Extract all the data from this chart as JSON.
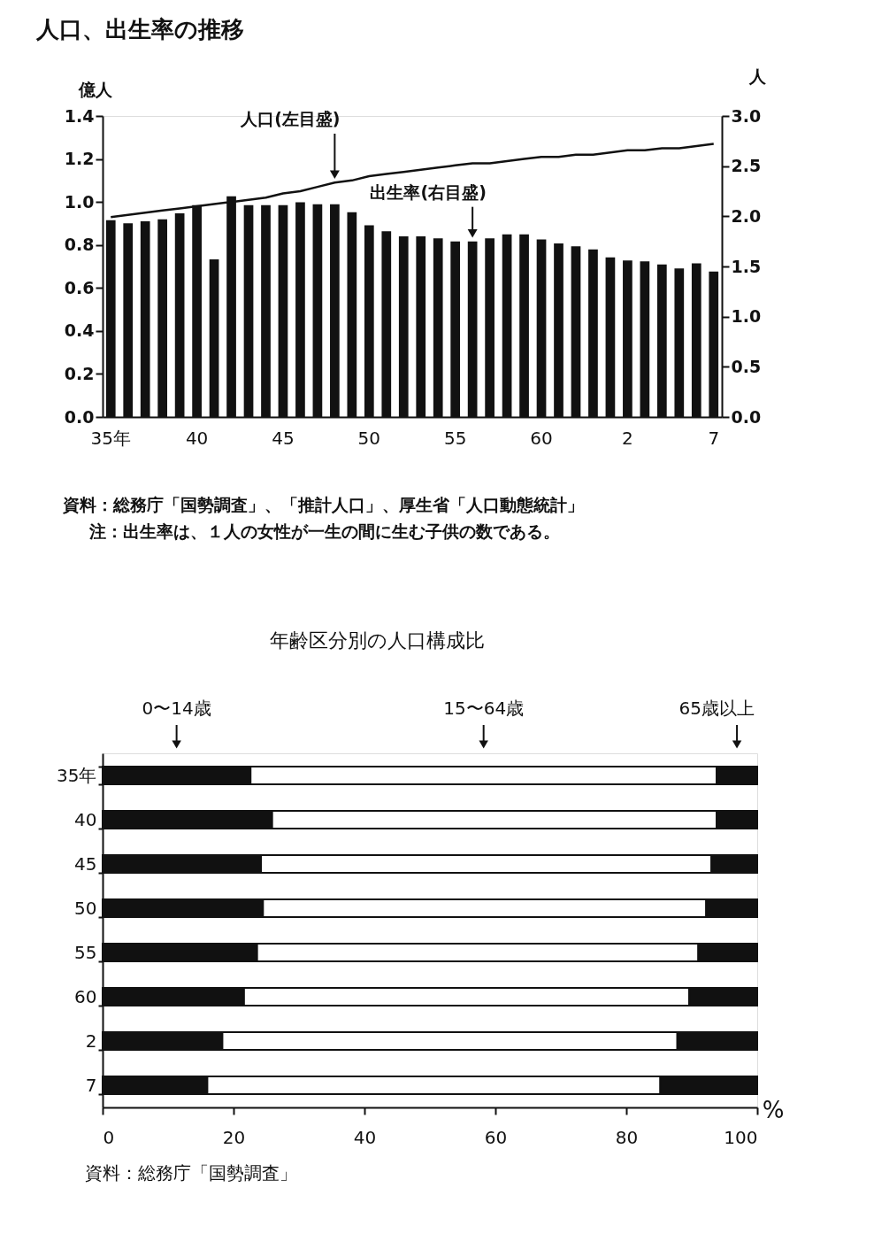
{
  "chart_data": [
    {
      "type": "bar",
      "title": "人口、出生率の推移",
      "ylabel": "億人",
      "y2label": "人",
      "categories": [
        "35年",
        null,
        null,
        null,
        null,
        "40",
        null,
        null,
        null,
        null,
        "45",
        null,
        null,
        null,
        null,
        "50",
        null,
        null,
        null,
        null,
        "55",
        null,
        null,
        null,
        null,
        "60",
        null,
        null,
        null,
        null,
        "2",
        null,
        null,
        null,
        null,
        "7"
      ],
      "series": [
        {
          "name": "人口(左目盛)",
          "type": "line",
          "color": "#111111",
          "values": [
            0.93,
            0.94,
            0.95,
            0.96,
            0.97,
            0.98,
            0.99,
            1.0,
            1.01,
            1.02,
            1.04,
            1.05,
            1.07,
            1.09,
            1.1,
            1.12,
            1.13,
            1.14,
            1.15,
            1.16,
            1.17,
            1.18,
            1.18,
            1.19,
            1.2,
            1.21,
            1.21,
            1.22,
            1.22,
            1.23,
            1.24,
            1.24,
            1.25,
            1.25,
            1.26,
            1.27
          ]
        },
        {
          "name": "出生率(右目盛)",
          "type": "bar",
          "axis": "y2",
          "color": "#111111",
          "values": [
            1.96,
            1.93,
            1.95,
            1.97,
            2.03,
            2.11,
            1.57,
            2.2,
            2.11,
            2.11,
            2.11,
            2.14,
            2.12,
            2.12,
            2.04,
            1.91,
            1.85,
            1.8,
            1.8,
            1.78,
            1.75,
            1.75,
            1.78,
            1.82,
            1.82,
            1.77,
            1.73,
            1.7,
            1.67,
            1.59,
            1.56,
            1.55,
            1.52,
            1.48,
            1.53,
            1.45
          ]
        }
      ],
      "ylim": [
        0,
        1.4
      ],
      "yticks": [
        {
          "value": 0,
          "label": "0.0"
        },
        {
          "value": 0.2,
          "label": "0.2"
        },
        {
          "value": 0.4,
          "label": "0.4"
        },
        {
          "value": 0.6,
          "label": "0.6"
        },
        {
          "value": 0.8,
          "label": "0.8"
        },
        {
          "value": 1,
          "label": "1.0"
        },
        {
          "value": 1.2,
          "label": "1.2"
        },
        {
          "value": 1.4,
          "label": "1.4"
        }
      ],
      "y2lim": [
        0,
        3.0
      ],
      "y2ticks": [
        {
          "value": 0,
          "label": "0.0"
        },
        {
          "value": 0.5,
          "label": "0.5"
        },
        {
          "value": 1,
          "label": "1.0"
        },
        {
          "value": 1.5,
          "label": "1.5"
        },
        {
          "value": 2,
          "label": "2.0"
        },
        {
          "value": 2.5,
          "label": "2.5"
        },
        {
          "value": 3,
          "label": "3.0"
        }
      ],
      "grid": false,
      "annotations": [
        "資料：総務庁「国勢調査」、「推計人口」、厚生省「人口動態統計」",
        "注：出生率は、１人の女性が一生の間に生む子供の数である。"
      ]
    },
    {
      "type": "bar",
      "orientation": "horizontal",
      "stacked": true,
      "title": "年齢区分別の人口構成比",
      "xlabel": "%",
      "categories": [
        "35年",
        "40",
        "45",
        "50",
        "55",
        "60",
        "2",
        "7"
      ],
      "series": [
        {
          "name": "0〜14歳",
          "color": "#111111",
          "values": [
            22.6,
            25.9,
            24.2,
            24.5,
            23.6,
            21.6,
            18.3,
            16.0
          ]
        },
        {
          "name": "15〜64歳",
          "color": "#ffffff",
          "values": [
            71.2,
            67.9,
            68.8,
            67.7,
            67.4,
            68.0,
            69.5,
            69.2
          ]
        },
        {
          "name": "65歳以上",
          "color": "#111111",
          "values": [
            6.2,
            6.2,
            7.0,
            7.8,
            9.0,
            10.4,
            12.2,
            14.8
          ]
        }
      ],
      "xlim": [
        0,
        100
      ],
      "xticks": [
        0,
        20,
        40,
        60,
        80,
        100
      ],
      "grid": false,
      "annotations": [
        "資料：総務庁「国勢調査」"
      ]
    }
  ]
}
